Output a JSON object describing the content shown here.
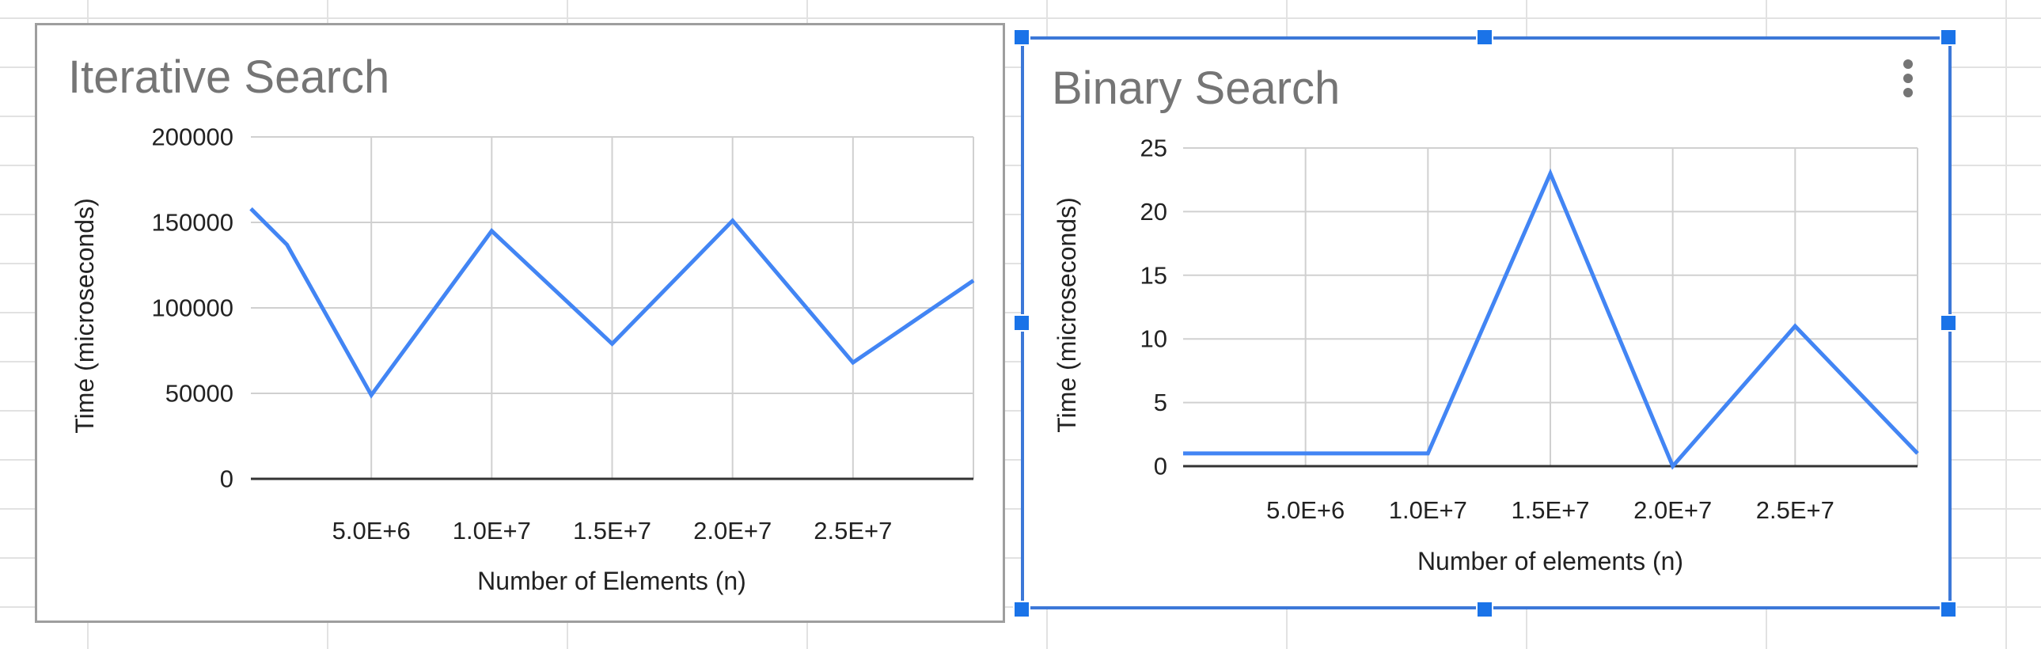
{
  "chart_data": [
    {
      "type": "line",
      "title": "Iterative Search",
      "xlabel": "Number of Elements (n)",
      "ylabel": "Time (microseconds)",
      "xlim": [
        0,
        30000000
      ],
      "ylim": [
        0,
        200000
      ],
      "y_ticks": [
        0,
        50000,
        100000,
        150000,
        200000
      ],
      "y_tick_labels": [
        "0",
        "50000",
        "100000",
        "150000",
        "200000"
      ],
      "x_ticks": [
        5000000,
        10000000,
        15000000,
        20000000,
        25000000
      ],
      "x_tick_labels": [
        "5.0E+6",
        "1.0E+7",
        "1.5E+7",
        "2.0E+7",
        "2.5E+7"
      ],
      "grid": true,
      "series": [
        {
          "color": "#4285f4",
          "x": [
            0,
            1500000,
            5000000,
            10000000,
            15000000,
            20000000,
            25000000,
            30000000
          ],
          "y": [
            158000,
            137000,
            49000,
            145000,
            79000,
            151000,
            68000,
            116000
          ]
        }
      ]
    },
    {
      "type": "line",
      "title": "Binary Search",
      "xlabel": "Number of elements (n)",
      "ylabel": "Time (microseconds)",
      "xlim": [
        0,
        30000000
      ],
      "ylim": [
        0,
        25
      ],
      "y_ticks": [
        0,
        5,
        10,
        15,
        20,
        25
      ],
      "y_tick_labels": [
        "0",
        "5",
        "10",
        "15",
        "20",
        "25"
      ],
      "x_ticks": [
        5000000,
        10000000,
        15000000,
        20000000,
        25000000
      ],
      "x_tick_labels": [
        "5.0E+6",
        "1.0E+7",
        "1.5E+7",
        "2.0E+7",
        "2.5E+7"
      ],
      "grid": true,
      "series": [
        {
          "color": "#4285f4",
          "x": [
            0,
            10000000,
            15000000,
            20000000,
            25000000,
            30000000
          ],
          "y": [
            1,
            1,
            23,
            0,
            11,
            1
          ]
        }
      ]
    }
  ]
}
